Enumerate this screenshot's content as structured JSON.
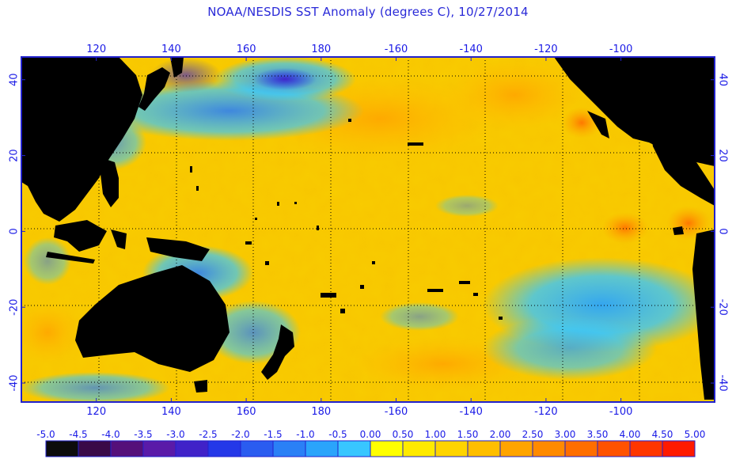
{
  "title": "NOAA/NESDIS SST Anomaly (degrees C), 10/27/2014",
  "map": {
    "lon_range": [
      100,
      285
    ],
    "lat_range": [
      -45,
      46
    ],
    "lon_ticks": [
      {
        "lon": 120,
        "label": "120"
      },
      {
        "lon": 140,
        "label": "140"
      },
      {
        "lon": 160,
        "label": "160"
      },
      {
        "lon": 180,
        "label": "180"
      },
      {
        "lon": 200,
        "label": "-160"
      },
      {
        "lon": 220,
        "label": "-140"
      },
      {
        "lon": 240,
        "label": "-120"
      },
      {
        "lon": 260,
        "label": "-100"
      }
    ],
    "lat_ticks": [
      {
        "lat": 40,
        "label": "40",
        "label_right": "40"
      },
      {
        "lat": 20,
        "label": "20",
        "label_right": "20"
      },
      {
        "lat": 0,
        "label": "0",
        "label_right": "0"
      },
      {
        "lat": -20,
        "label": "-20",
        "label_right": "-20"
      },
      {
        "lat": -40,
        "label": "-40",
        "label_right": "-40"
      }
    ],
    "colors": {
      "background_warm": "#f5c400",
      "land": "#000000",
      "frame": "#2222cc",
      "grid": "#000000"
    }
  },
  "colorbar": {
    "labels": [
      "-5.0",
      "-4.5",
      "-4.0",
      "-3.5",
      "-3.0",
      "-2.5",
      "-2.0",
      "-1.5",
      "-1.0",
      "-0.5",
      "0.00",
      "0.50",
      "1.00",
      "1.50",
      "2.00",
      "2.50",
      "3.00",
      "3.50",
      "4.00",
      "4.50",
      "5.00"
    ],
    "colors": [
      "#0c0c0c",
      "#3a0a48",
      "#55107a",
      "#5a1aa8",
      "#4022c8",
      "#2438e8",
      "#2a5cf0",
      "#2a80f6",
      "#2aa4fb",
      "#38c6ff",
      "#ffff00",
      "#ffea00",
      "#ffd400",
      "#ffbe00",
      "#ffa400",
      "#ff8a00",
      "#ff6e00",
      "#ff5200",
      "#ff3600",
      "#ff1a00"
    ]
  }
}
